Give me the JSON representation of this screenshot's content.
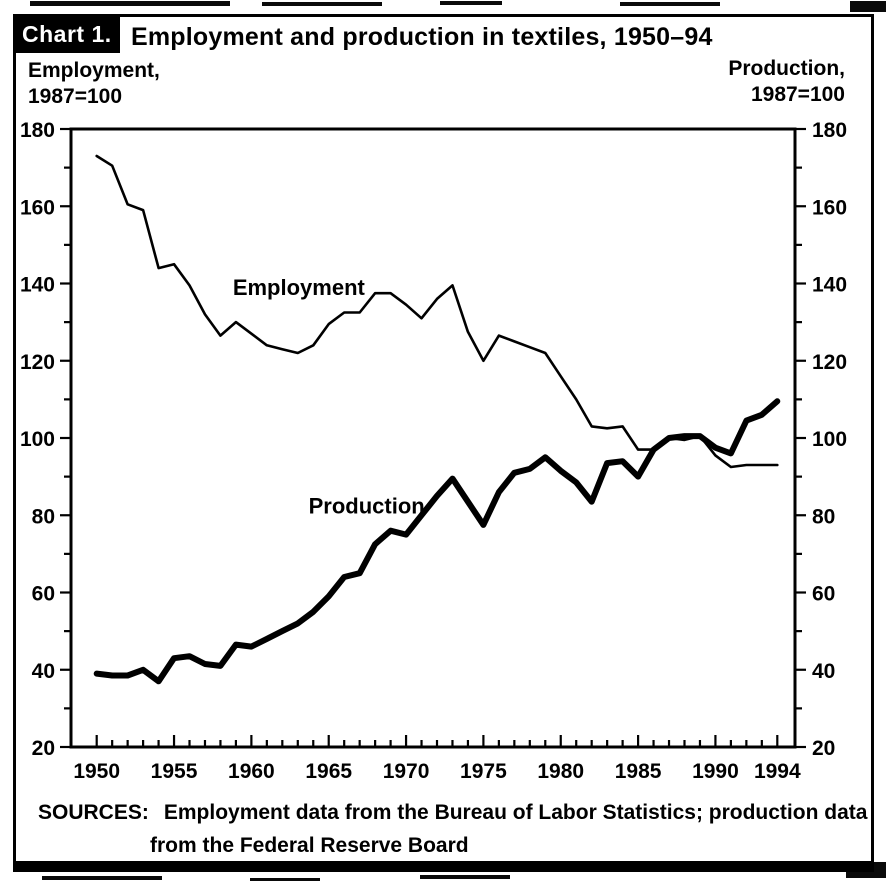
{
  "figure": {
    "chart_label": "Chart 1.",
    "title": "Employment and production in textiles, 1950–94",
    "left_axis_caption_line1": "Employment,",
    "left_axis_caption_line2": "1987=100",
    "right_axis_caption_line1": "Production,",
    "right_axis_caption_line2": "1987=100",
    "sources_label": "SOURCES:",
    "sources_line1": "Employment data from the Bureau of Labor Statistics; production data",
    "sources_line2": "from the Federal Reserve Board",
    "colors": {
      "line": "#000000",
      "background": "#ffffff",
      "chip_background": "#000000",
      "chip_text": "#ffffff"
    }
  },
  "chart_data": {
    "type": "line",
    "title": "Employment and production in textiles, 1950–94",
    "left_axis_label": "Employment, 1987=100",
    "right_axis_label": "Production, 1987=100",
    "grid": false,
    "legend": "inline-annotations",
    "ylim": [
      20,
      180
    ],
    "y_tick_labels": [
      20,
      40,
      60,
      80,
      100,
      120,
      140,
      160,
      180
    ],
    "y_minor_step": 10,
    "x_tick_labels": [
      1950,
      1955,
      1960,
      1965,
      1970,
      1975,
      1980,
      1985,
      1990,
      1994
    ],
    "x": [
      1950,
      1951,
      1952,
      1953,
      1954,
      1955,
      1956,
      1957,
      1958,
      1959,
      1960,
      1961,
      1962,
      1963,
      1964,
      1965,
      1966,
      1967,
      1968,
      1969,
      1970,
      1971,
      1972,
      1973,
      1974,
      1975,
      1976,
      1977,
      1978,
      1979,
      1980,
      1981,
      1982,
      1983,
      1984,
      1985,
      1986,
      1987,
      1988,
      1989,
      1990,
      1991,
      1992,
      1993,
      1994
    ],
    "series": [
      {
        "name": "Employment",
        "style": "thin",
        "values": [
          173,
          170.5,
          160.5,
          159,
          144,
          145,
          139.5,
          132,
          126.5,
          130,
          127,
          124,
          123,
          122,
          124,
          129.5,
          132.5,
          132.5,
          137.5,
          137.5,
          134.5,
          131,
          136,
          139.5,
          127.5,
          120,
          126.5,
          125,
          123.5,
          122,
          116,
          110,
          103,
          102.5,
          103,
          97,
          97,
          100,
          99.5,
          100.5,
          95.5,
          92.5,
          93,
          93,
          93
        ]
      },
      {
        "name": "Production",
        "style": "thick",
        "values": [
          39,
          38.5,
          38.5,
          40,
          37,
          43,
          43.5,
          41.5,
          41,
          46.5,
          46,
          48,
          50,
          52,
          55,
          59,
          64,
          65,
          72.5,
          76,
          75,
          80,
          85,
          89.5,
          83.5,
          77.5,
          86,
          91,
          92,
          95,
          91.5,
          88.5,
          83.5,
          93.5,
          94,
          90,
          97,
          100,
          100.5,
          100.5,
          97.5,
          96,
          104.5,
          106,
          109.5
        ]
      }
    ],
    "annotations": [
      {
        "text": "Employment",
        "year": 1958.8,
        "value": 137
      },
      {
        "text": "Production",
        "year": 1963.7,
        "value": 80.5
      }
    ]
  }
}
